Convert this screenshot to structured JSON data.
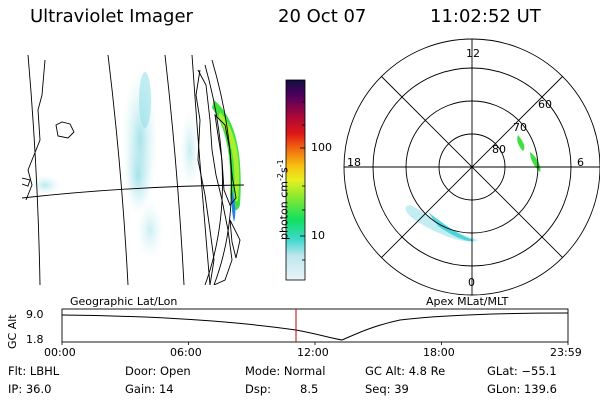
{
  "header": {
    "instrument": "Ultraviolet Imager",
    "date": "20 Oct 07",
    "time": "11:02:52 UT"
  },
  "colorbar": {
    "unit_label": "photon cm",
    "unit_sup1": "-2",
    "unit_mid": "s",
    "unit_sup2": "-1",
    "ticks": [
      "100",
      "10"
    ]
  },
  "polar_plot": {
    "mlt_labels": [
      "12",
      "18",
      "6",
      "0"
    ],
    "lat_labels": [
      "60",
      "70",
      "80"
    ]
  },
  "track": {
    "left_title": "Geographic Lat/Lon",
    "right_title": "Apex MLat/MLT",
    "axis_label": "GC Alt",
    "y_ticks": [
      "9.0",
      "1.8"
    ],
    "x_ticks": [
      "00:00",
      "06:00",
      "12:00",
      "18:00",
      "23:59"
    ]
  },
  "info": {
    "flt": "Flt: LBHL",
    "door": "Door: Open",
    "mode": "Mode: Normal",
    "gc_alt": "GC Alt: 4.8 Re",
    "glat": "GLat: −55.1",
    "ip": "IP: 36.0",
    "gain": "Gain: 14",
    "dsp_label": "Dsp:",
    "dsp_value": "8.5",
    "seq": "Seq: 39",
    "glon": "GLon: 139.6"
  },
  "colors": {
    "colorbar_stops": [
      "#e8f4f8",
      "#bfe6ee",
      "#40d8d0",
      "#10e060",
      "#90e830",
      "#e8f020",
      "#f8c010",
      "#f07010",
      "#e01818",
      "#a80838",
      "#500060",
      "#101040"
    ],
    "current_time_marker": "#c00000",
    "aurora_cyan": "#7fd8e0",
    "aurora_green": "#40e040"
  }
}
